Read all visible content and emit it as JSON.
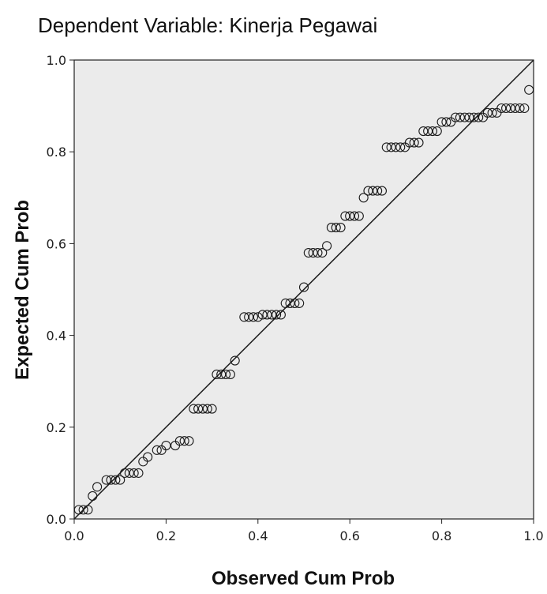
{
  "chart_data": {
    "type": "scatter",
    "title": "Dependent Variable: Kinerja Pegawai",
    "xlabel": "Observed Cum Prob",
    "ylabel": "Expected Cum Prob",
    "xlim": [
      0,
      1
    ],
    "ylim": [
      0,
      1
    ],
    "x_ticks": [
      "0.0",
      "0.2",
      "0.4",
      "0.6",
      "0.8",
      "1.0"
    ],
    "y_ticks": [
      "0.0",
      "0.2",
      "0.4",
      "0.6",
      "0.8",
      "1.0"
    ],
    "grid": false,
    "reference_line": {
      "from": [
        0,
        0
      ],
      "to": [
        1,
        1
      ]
    },
    "points": [
      [
        0.01,
        0.02
      ],
      [
        0.02,
        0.02
      ],
      [
        0.03,
        0.02
      ],
      [
        0.04,
        0.05
      ],
      [
        0.05,
        0.07
      ],
      [
        0.07,
        0.085
      ],
      [
        0.08,
        0.085
      ],
      [
        0.09,
        0.085
      ],
      [
        0.1,
        0.085
      ],
      [
        0.11,
        0.1
      ],
      [
        0.12,
        0.1
      ],
      [
        0.13,
        0.1
      ],
      [
        0.14,
        0.1
      ],
      [
        0.15,
        0.125
      ],
      [
        0.16,
        0.135
      ],
      [
        0.18,
        0.15
      ],
      [
        0.19,
        0.15
      ],
      [
        0.2,
        0.16
      ],
      [
        0.22,
        0.16
      ],
      [
        0.23,
        0.17
      ],
      [
        0.24,
        0.17
      ],
      [
        0.25,
        0.17
      ],
      [
        0.26,
        0.24
      ],
      [
        0.27,
        0.24
      ],
      [
        0.28,
        0.24
      ],
      [
        0.29,
        0.24
      ],
      [
        0.3,
        0.24
      ],
      [
        0.31,
        0.315
      ],
      [
        0.32,
        0.315
      ],
      [
        0.33,
        0.315
      ],
      [
        0.34,
        0.315
      ],
      [
        0.35,
        0.345
      ],
      [
        0.37,
        0.44
      ],
      [
        0.38,
        0.44
      ],
      [
        0.39,
        0.44
      ],
      [
        0.4,
        0.44
      ],
      [
        0.41,
        0.445
      ],
      [
        0.42,
        0.445
      ],
      [
        0.43,
        0.445
      ],
      [
        0.44,
        0.445
      ],
      [
        0.45,
        0.445
      ],
      [
        0.46,
        0.47
      ],
      [
        0.47,
        0.47
      ],
      [
        0.48,
        0.47
      ],
      [
        0.49,
        0.47
      ],
      [
        0.5,
        0.505
      ],
      [
        0.51,
        0.58
      ],
      [
        0.52,
        0.58
      ],
      [
        0.53,
        0.58
      ],
      [
        0.54,
        0.58
      ],
      [
        0.55,
        0.595
      ],
      [
        0.56,
        0.635
      ],
      [
        0.57,
        0.635
      ],
      [
        0.58,
        0.635
      ],
      [
        0.59,
        0.66
      ],
      [
        0.6,
        0.66
      ],
      [
        0.61,
        0.66
      ],
      [
        0.62,
        0.66
      ],
      [
        0.63,
        0.7
      ],
      [
        0.64,
        0.715
      ],
      [
        0.65,
        0.715
      ],
      [
        0.66,
        0.715
      ],
      [
        0.67,
        0.715
      ],
      [
        0.68,
        0.81
      ],
      [
        0.69,
        0.81
      ],
      [
        0.7,
        0.81
      ],
      [
        0.71,
        0.81
      ],
      [
        0.72,
        0.81
      ],
      [
        0.73,
        0.82
      ],
      [
        0.74,
        0.82
      ],
      [
        0.75,
        0.82
      ],
      [
        0.76,
        0.845
      ],
      [
        0.77,
        0.845
      ],
      [
        0.78,
        0.845
      ],
      [
        0.79,
        0.845
      ],
      [
        0.8,
        0.865
      ],
      [
        0.81,
        0.865
      ],
      [
        0.82,
        0.865
      ],
      [
        0.83,
        0.875
      ],
      [
        0.84,
        0.875
      ],
      [
        0.85,
        0.875
      ],
      [
        0.86,
        0.875
      ],
      [
        0.87,
        0.875
      ],
      [
        0.88,
        0.875
      ],
      [
        0.89,
        0.875
      ],
      [
        0.9,
        0.885
      ],
      [
        0.91,
        0.885
      ],
      [
        0.92,
        0.885
      ],
      [
        0.93,
        0.895
      ],
      [
        0.94,
        0.895
      ],
      [
        0.95,
        0.895
      ],
      [
        0.96,
        0.895
      ],
      [
        0.97,
        0.895
      ],
      [
        0.98,
        0.895
      ],
      [
        0.99,
        0.935
      ]
    ],
    "colors": {
      "plot_background": "#ebebeb",
      "marker_stroke": "#1a1a1a",
      "reference_line": "#1a1a1a",
      "frame": "#222222"
    }
  }
}
